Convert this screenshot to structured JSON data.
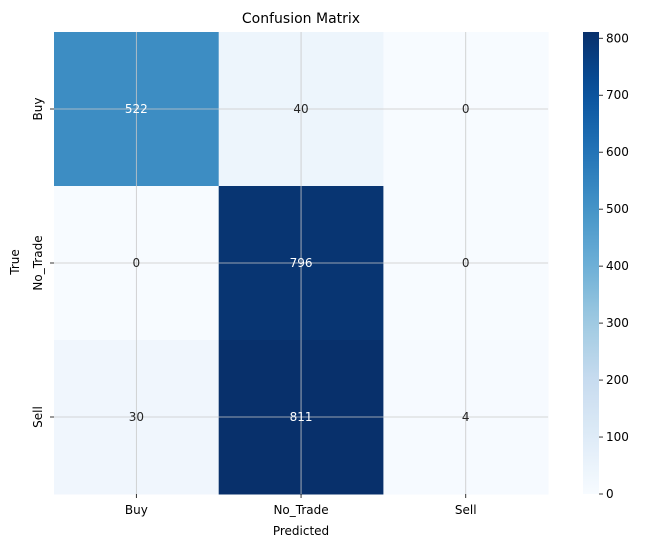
{
  "chart_data": {
    "type": "heatmap",
    "title": "Confusion Matrix",
    "xlabel": "Predicted",
    "ylabel": "True",
    "x_categories": [
      "Buy",
      "No_Trade",
      "Sell"
    ],
    "y_categories": [
      "Buy",
      "No_Trade",
      "Sell"
    ],
    "values": [
      [
        522,
        40,
        0
      ],
      [
        0,
        796,
        0
      ],
      [
        30,
        811,
        4
      ]
    ],
    "colormap": "Blues",
    "color_range": [
      0,
      811
    ],
    "colorbar_ticks": [
      0,
      100,
      200,
      300,
      400,
      500,
      600,
      700,
      800
    ],
    "grid": true,
    "colors": {
      "low": "#f7fbff",
      "high": "#08306b",
      "annotation_light": "#ffffff",
      "annotation_dark": "#262626"
    }
  }
}
